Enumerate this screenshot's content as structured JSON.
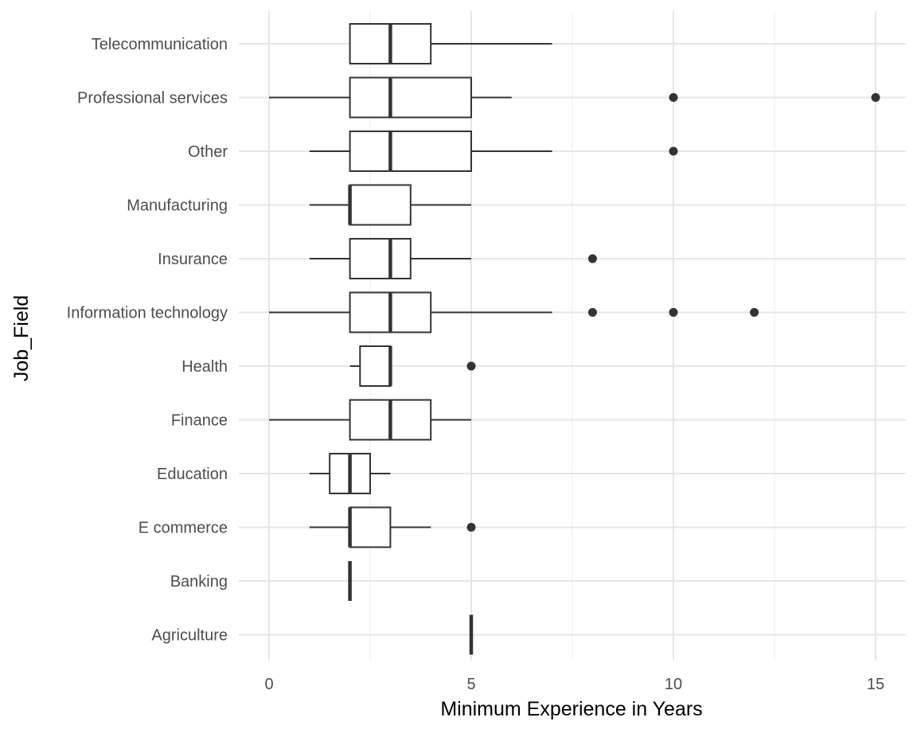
{
  "chart_data": {
    "type": "boxplot",
    "orientation": "horizontal",
    "xlabel": "Minimum Experience in Years",
    "ylabel": "Job_Field",
    "xlim": [
      -1.5,
      15.8
    ],
    "x_ticks": [
      0,
      5,
      10,
      15
    ],
    "x_tick_labels": [
      "0",
      "5",
      "10",
      "15"
    ],
    "grid": true,
    "colors": {
      "box_stroke": "#333333",
      "box_fill": "#ffffff",
      "grid_major": "#e6e6e6",
      "grid_minor": "#f0f0f0",
      "outlier": "#333333"
    },
    "categories": [
      "Telecommunication",
      "Professional services",
      "Other",
      "Manufacturing",
      "Insurance",
      "Information technology",
      "Health",
      "Finance",
      "Education",
      "E commerce",
      "Banking",
      "Agriculture"
    ],
    "boxes": [
      {
        "category": "Telecommunication",
        "min": 2,
        "q1": 2,
        "median": 3,
        "q3": 4,
        "max": 7,
        "outliers": []
      },
      {
        "category": "Professional services",
        "min": 0,
        "q1": 2,
        "median": 3,
        "q3": 5,
        "max": 6,
        "outliers": [
          10,
          15
        ]
      },
      {
        "category": "Other",
        "min": 1,
        "q1": 2,
        "median": 3,
        "q3": 5,
        "max": 7,
        "outliers": [
          10
        ]
      },
      {
        "category": "Manufacturing",
        "min": 1,
        "q1": 2,
        "median": 2,
        "q3": 3.5,
        "max": 5,
        "outliers": []
      },
      {
        "category": "Insurance",
        "min": 1,
        "q1": 2,
        "median": 3,
        "q3": 3.5,
        "max": 5,
        "outliers": [
          8
        ]
      },
      {
        "category": "Information technology",
        "min": 0,
        "q1": 2,
        "median": 3,
        "q3": 4,
        "max": 7,
        "outliers": [
          8,
          10,
          12
        ]
      },
      {
        "category": "Health",
        "min": 2,
        "q1": 2.25,
        "median": 3,
        "q3": 3,
        "max": 3,
        "outliers": [
          5
        ]
      },
      {
        "category": "Finance",
        "min": 0,
        "q1": 2,
        "median": 3,
        "q3": 4,
        "max": 5,
        "outliers": []
      },
      {
        "category": "Education",
        "min": 1,
        "q1": 1.5,
        "median": 2,
        "q3": 2.5,
        "max": 3,
        "outliers": []
      },
      {
        "category": "E commerce",
        "min": 1,
        "q1": 2,
        "median": 2,
        "q3": 3,
        "max": 4,
        "outliers": [
          5
        ]
      },
      {
        "category": "Banking",
        "min": 2,
        "q1": 2,
        "median": 2,
        "q3": 2,
        "max": 2,
        "outliers": []
      },
      {
        "category": "Agriculture",
        "min": 5,
        "q1": 5,
        "median": 5,
        "q3": 5,
        "max": 5,
        "outliers": []
      }
    ]
  }
}
